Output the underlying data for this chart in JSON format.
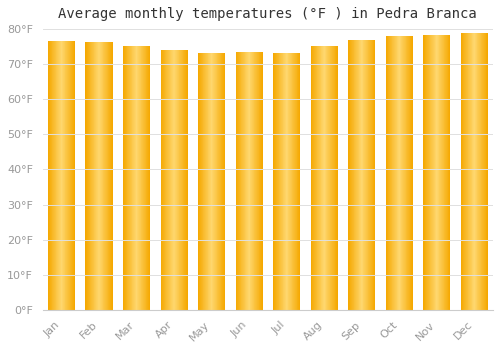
{
  "title": "Average monthly temperatures (°F ) in Pedra Branca",
  "months": [
    "Jan",
    "Feb",
    "Mar",
    "Apr",
    "May",
    "Jun",
    "Jul",
    "Aug",
    "Sep",
    "Oct",
    "Nov",
    "Dec"
  ],
  "values": [
    76.5,
    76.3,
    75.2,
    74.1,
    73.2,
    73.4,
    73.1,
    75.2,
    77.0,
    78.1,
    78.2,
    79.0
  ],
  "ylim": [
    0,
    80
  ],
  "yticks": [
    0,
    10,
    20,
    30,
    40,
    50,
    60,
    70,
    80
  ],
  "ytick_labels": [
    "0°F",
    "10°F",
    "20°F",
    "30°F",
    "40°F",
    "50°F",
    "60°F",
    "70°F",
    "80°F"
  ],
  "bar_color_edge": "#F5A800",
  "bar_color_center": "#FFD966",
  "background_color": "#FFFFFF",
  "grid_color": "#E0E0E0",
  "title_fontsize": 10,
  "tick_fontsize": 8,
  "tick_color": "#999999",
  "bar_width": 0.72
}
